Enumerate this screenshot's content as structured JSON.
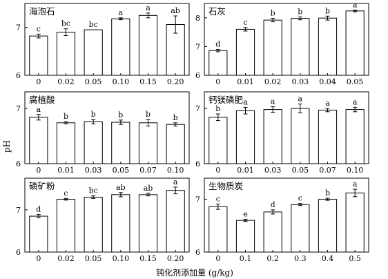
{
  "figure": {
    "ylabel": "pH",
    "xlabel": "钝化剂添加量 (g/kg)"
  },
  "chart_data": [
    {
      "type": "bar",
      "title": "海泡石",
      "categories": [
        "0",
        "0.02",
        "0.05",
        "0.10",
        "0.15",
        "0.20"
      ],
      "values": [
        6.82,
        6.9,
        6.95,
        7.18,
        7.25,
        7.06
      ],
      "errors": [
        0.04,
        0.07,
        0.0,
        0.02,
        0.05,
        0.18
      ],
      "letters": [
        "c",
        "bc",
        "bc",
        "a",
        "a",
        "ab"
      ],
      "ylim": [
        6,
        7.5
      ],
      "yticks": [
        6,
        7
      ]
    },
    {
      "type": "bar",
      "title": "石灰",
      "categories": [
        "0",
        "0.01",
        "0.02",
        "0.03",
        "0.04",
        "0.05"
      ],
      "values": [
        6.86,
        7.6,
        7.92,
        7.98,
        7.99,
        8.24
      ],
      "errors": [
        0.04,
        0.06,
        0.06,
        0.05,
        0.07,
        0.03
      ],
      "letters": [
        "d",
        "c",
        "b",
        "b",
        "b",
        "a"
      ],
      "ylim": [
        6,
        8.5
      ],
      "yticks": [
        6,
        7,
        8
      ]
    },
    {
      "type": "bar",
      "title": "腐植酸",
      "categories": [
        "0",
        "0.01",
        "0.03",
        "0.05",
        "0.07",
        "0.10"
      ],
      "values": [
        6.84,
        6.74,
        6.76,
        6.75,
        6.74,
        6.71
      ],
      "errors": [
        0.05,
        0.02,
        0.04,
        0.04,
        0.06,
        0.03
      ],
      "letters": [
        "a",
        "b",
        "b",
        "b",
        "b",
        "b"
      ],
      "ylim": [
        6,
        7.3
      ],
      "yticks": [
        6,
        7
      ]
    },
    {
      "type": "bar",
      "title": "钙镁磷肥",
      "categories": [
        "0",
        "0.01",
        "0.03",
        "0.05",
        "0.07",
        "0.10"
      ],
      "values": [
        6.84,
        6.96,
        6.98,
        7.0,
        6.97,
        6.98
      ],
      "errors": [
        0.06,
        0.06,
        0.05,
        0.08,
        0.03,
        0.04
      ],
      "letters": [
        "b",
        "a",
        "a",
        "a",
        "a",
        "a"
      ],
      "ylim": [
        6,
        7.3
      ],
      "yticks": [
        6,
        7
      ]
    },
    {
      "type": "bar",
      "title": "磷矿粉",
      "categories": [
        "0",
        "0.02",
        "0.05",
        "0.10",
        "0.15",
        "0.20"
      ],
      "values": [
        6.85,
        7.25,
        7.3,
        7.36,
        7.36,
        7.46
      ],
      "errors": [
        0.04,
        0.02,
        0.03,
        0.05,
        0.03,
        0.08
      ],
      "letters": [
        "d",
        "c",
        "bc",
        "ab",
        "ab",
        "a"
      ],
      "ylim": [
        6,
        7.75
      ],
      "yticks": [
        6,
        7
      ]
    },
    {
      "type": "bar",
      "title": "生物质炭",
      "categories": [
        "0",
        "0.1",
        "0.2",
        "0.3",
        "0.4",
        "0.5"
      ],
      "values": [
        6.86,
        6.6,
        6.76,
        6.9,
        7.0,
        7.12
      ],
      "errors": [
        0.05,
        0.02,
        0.04,
        0.02,
        0.02,
        0.07
      ],
      "letters": [
        "c",
        "e",
        "d",
        "c",
        "b",
        "a"
      ],
      "ylim": [
        6,
        7.4
      ],
      "yticks": [
        6,
        7
      ]
    }
  ]
}
